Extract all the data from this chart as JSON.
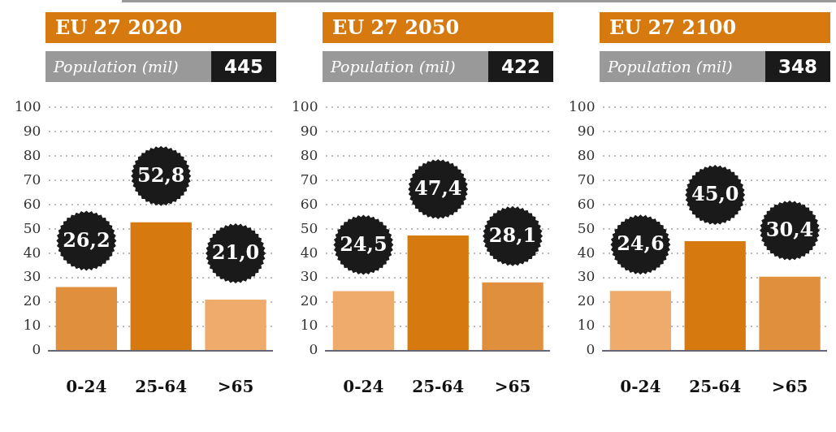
{
  "chart_data": [
    {
      "type": "bar",
      "title": "EU 27 2020",
      "subtitle": "Population (mil)",
      "annotations": [
        "445"
      ],
      "categories": [
        "0-24",
        "25-64",
        ">65"
      ],
      "values": [
        26.2,
        52.8,
        21.0
      ],
      "colors": [
        "#e08f3c",
        "#d67a10",
        "#eeab6c"
      ],
      "value_labels": [
        "26,2",
        "52,8",
        "21,0"
      ],
      "ylim": [
        0,
        100
      ],
      "yticks": [
        0,
        10,
        20,
        30,
        40,
        50,
        60,
        70,
        80,
        90,
        100
      ],
      "grid": "y"
    },
    {
      "type": "bar",
      "title": "EU 27 2050",
      "subtitle": "Population (mil)",
      "annotations": [
        "422"
      ],
      "categories": [
        "0-24",
        "25-64",
        ">65"
      ],
      "values": [
        24.5,
        47.4,
        28.1
      ],
      "colors": [
        "#eeab6c",
        "#d67a10",
        "#e08f3c"
      ],
      "value_labels": [
        "24,5",
        "47,4",
        "28,1"
      ],
      "ylim": [
        0,
        100
      ],
      "yticks": [
        0,
        10,
        20,
        30,
        40,
        50,
        60,
        70,
        80,
        90,
        100
      ],
      "grid": "y"
    },
    {
      "type": "bar",
      "title": "EU 27 2100",
      "subtitle": "Population (mil)",
      "annotations": [
        "348"
      ],
      "categories": [
        "0-24",
        "25-64",
        ">65"
      ],
      "values": [
        24.6,
        45.0,
        30.4
      ],
      "colors": [
        "#eeab6c",
        "#d67a10",
        "#e08f3c"
      ],
      "value_labels": [
        "24,6",
        "45,0",
        "30,4"
      ],
      "ylim": [
        0,
        100
      ],
      "yticks": [
        0,
        10,
        20,
        30,
        40,
        50,
        60,
        70,
        80,
        90,
        100
      ],
      "grid": "y"
    }
  ]
}
